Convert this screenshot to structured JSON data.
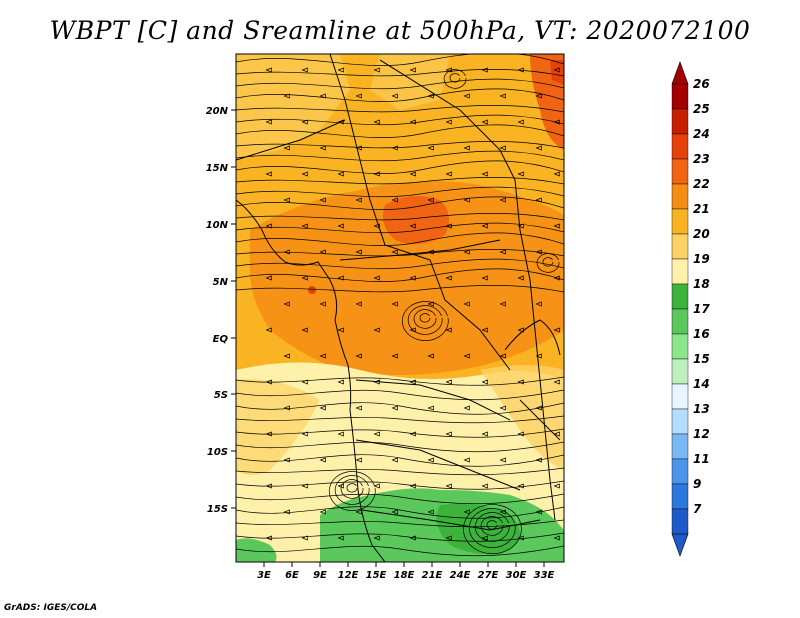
{
  "title": "WBPT [C] and Sreamline at 500hPa, VT: 2020072100",
  "credit": "GrADS: IGES/COLA",
  "map": {
    "lat_labels": [
      "20N",
      "15N",
      "10N",
      "5N",
      "EQ",
      "5S",
      "10S",
      "15S"
    ],
    "lon_labels": [
      "3E",
      "6E",
      "9E",
      "12E",
      "15E",
      "18E",
      "21E",
      "24E",
      "27E",
      "30E",
      "33E"
    ],
    "variable": "WBPT",
    "unit": "C",
    "overlay": "Streamlines",
    "level": "500hPa"
  },
  "colorbar": {
    "labels": [
      "26",
      "25",
      "24",
      "23",
      "22",
      "21",
      "20",
      "19",
      "18",
      "17",
      "16",
      "15",
      "14",
      "13",
      "12",
      "11",
      "9",
      "7"
    ],
    "colors": [
      "#a50000",
      "#c81e00",
      "#e6410a",
      "#f06414",
      "#f58c14",
      "#fab423",
      "#fcd264",
      "#fff0aa",
      "#3cb43c",
      "#5ac85a",
      "#8ce68c",
      "#bef0be",
      "#e6f5ff",
      "#b4dcff",
      "#78b9f5",
      "#4b96eb",
      "#2d78dc",
      "#1e5ac8"
    ]
  }
}
